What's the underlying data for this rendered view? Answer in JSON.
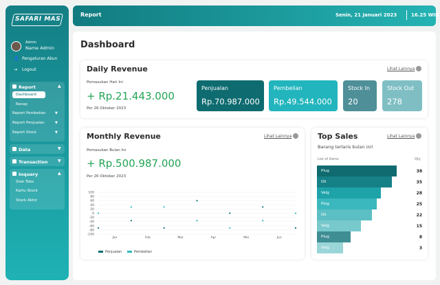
{
  "sidebar": {
    "logo": "SAFARI MAS",
    "role": "Admin",
    "name": "Name Admin",
    "account": [
      "Pengaturan Akun",
      "Logout"
    ],
    "menu": [
      {
        "label": "Report",
        "children": [
          "Dashboard",
          "Recap",
          "Report Pembelian",
          "Report Penjualan",
          "Report Stock"
        ]
      },
      {
        "label": "Data"
      },
      {
        "label": "Transaction"
      },
      {
        "label": "Inquery",
        "children": [
          "Stok Toko",
          "Kartu Stock",
          "Stock Akhir"
        ]
      }
    ]
  },
  "header": {
    "title": "Report",
    "date": "Senin, 21 Januari 2023",
    "time": "16.25 WIB"
  },
  "page_title": "Dashboard",
  "daily": {
    "title": "Daily Revenue",
    "link": "Lihat Lainnya",
    "label": "Pemasukan Hari Ini",
    "amount": "+ Rp.21.443.000",
    "date": "Per 26 Oktober 2023",
    "stats": [
      {
        "label": "Penjualan",
        "value": "Rp.70.987.000",
        "color": "#0e6b70"
      },
      {
        "label": "Pembelian",
        "value": "Rp.49.544.000",
        "color": "#22b5bd"
      },
      {
        "label": "Stock In",
        "value": "20",
        "color": "#4e8f98"
      },
      {
        "label": "Stock Out",
        "value": "278",
        "color": "#7fbfc4"
      }
    ]
  },
  "monthly": {
    "title": "Monthly Revenue",
    "link": "Lihat Lainnya",
    "label": "Pemasukan Bulan Ini",
    "amount": "+ Rp.500.987.000",
    "date": "Per 26 Oktober 2023"
  },
  "chart_data": {
    "type": "line",
    "categories": [
      "Jan",
      "Feb",
      "Mar",
      "Apr",
      "Mei",
      "Jun",
      null
    ],
    "series": [
      {
        "name": "Penjualan",
        "color": "#0d6e73",
        "values": [
          -70,
          -35,
          -70,
          60,
          0,
          30,
          -70
        ]
      },
      {
        "name": "Pembelian",
        "color": "#2fb8bf",
        "values": [
          0,
          30,
          30,
          -35,
          -70,
          -35,
          0
        ]
      }
    ],
    "ylim": [
      -100,
      100
    ],
    "yticks": [
      -100,
      -80,
      -60,
      -40,
      -20,
      0,
      20,
      40,
      60,
      80,
      100
    ],
    "grid": true
  },
  "top_sales": {
    "title": "Top Sales",
    "link": "Lihat Lainnya",
    "subtitle": "Barang terlaris bulan ini!",
    "col_item": "List of items",
    "col_qty": "Qty",
    "items": [
      {
        "name": "Plug",
        "qty": 38,
        "color": "#0f6b6f"
      },
      {
        "name": "Oli",
        "qty": 35,
        "color": "#168087"
      },
      {
        "name": "Velg",
        "qty": 28,
        "color": "#1ea3a9"
      },
      {
        "name": "Plug",
        "qty": 25,
        "color": "#3bb8bd"
      },
      {
        "name": "Oli",
        "qty": 22,
        "color": "#5cbfc3"
      },
      {
        "name": "Velg",
        "qty": 15,
        "color": "#78c9cc"
      },
      {
        "name": "Plug",
        "qty": 8,
        "color": "#3f8e94"
      },
      {
        "name": "Velg",
        "qty": 3,
        "color": "#9ad5d8"
      }
    ]
  }
}
